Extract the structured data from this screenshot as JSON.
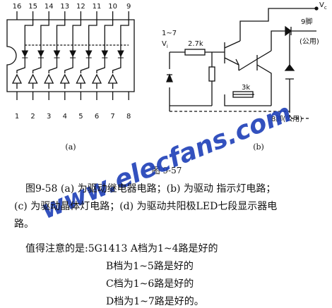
{
  "figure": {
    "label": "图 9-57",
    "a": {
      "label": "(a)",
      "top_pins": [
        "16",
        "15",
        "14",
        "13",
        "12",
        "11",
        "10",
        "9"
      ],
      "bottom_pins": [
        "1",
        "2",
        "3",
        "4",
        "5",
        "6",
        "7",
        "8"
      ]
    },
    "b": {
      "label": "(b)",
      "input": "1~7",
      "vi": "V",
      "vi_sub": "i",
      "r1": "2.7k",
      "r2": "3k",
      "vc": "V",
      "vc_sub": "c",
      "pin9": "9脚",
      "pin9_note": "(公用)",
      "pin8": "8脚(公用)"
    }
  },
  "watermark": "www.elecfans.com",
  "caption": {
    "lines": [
      "图9-58 (a) 为驱动继电器电路；(b) 为驱动 指示灯电路；",
      "(c) 为驱动晶体灯电路；(d) 为驱动共阳极LED七段显示器电",
      "路。"
    ]
  },
  "note": {
    "lines": [
      "值得注意的是:5G1413  A档为1~4路是好的",
      "B档为1~5路是好的",
      "C档为1~6路是好的",
      "D档为1~7路是好的。"
    ]
  }
}
